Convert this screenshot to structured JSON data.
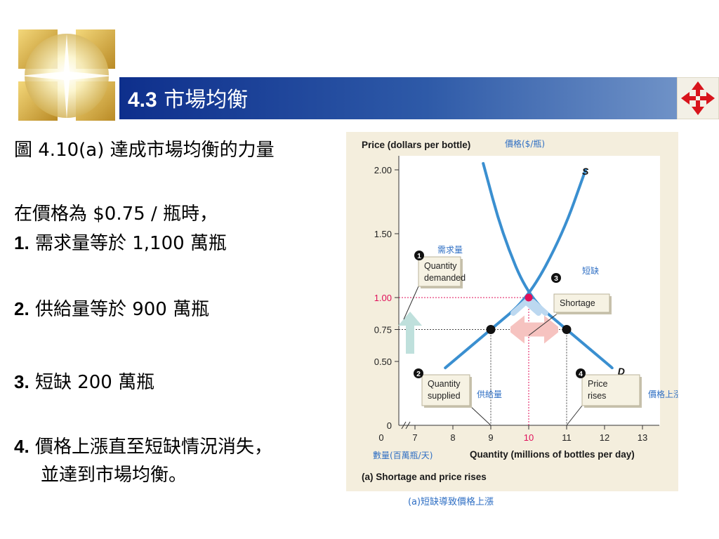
{
  "header": {
    "number": "4.3",
    "title": "市場均衡"
  },
  "nav_icon": "four-way-arrow-icon",
  "body_text": {
    "figure_title": "圖 4.10(a) 達成市場均衡的力量",
    "intro": "在價格為 $0.75 / 瓶時，",
    "items": [
      {
        "num": "1.",
        "text": "需求量等於 1,100 萬瓶"
      },
      {
        "num": "2.",
        "text": "供給量等於 900 萬瓶"
      },
      {
        "num": "3.",
        "text": "短缺 200 萬瓶"
      },
      {
        "num": "4.",
        "text": "價格上漲直至短缺情況消失，",
        "text2": "並達到市場均衡。"
      }
    ]
  },
  "chart_data": {
    "type": "line",
    "title": "(a) Shortage and price rises",
    "ylabel": "Price (dollars per bottle)",
    "ylabel_zh": "價格($/瓶)",
    "xlabel": "Quantity (millions of bottles per day)",
    "xlabel_zh": "數量(百萬瓶/天)",
    "caption_zh": "(a)短缺導致價格上漲",
    "xlim": [
      7,
      13
    ],
    "ylim": [
      0,
      2.0
    ],
    "x_ticks": [
      "0",
      "7",
      "8",
      "9",
      "10",
      "11",
      "12",
      "13"
    ],
    "y_ticks": [
      "0",
      "0.50",
      "0.75",
      "1.00",
      "1.50",
      "2.00"
    ],
    "y_tick_values": [
      0,
      0.5,
      0.75,
      1.0,
      1.5,
      2.0
    ],
    "x_tick_values": [
      7,
      8,
      9,
      10,
      11,
      12,
      13
    ],
    "highlight_tick_x": "10",
    "highlight_tick_y": "1.00",
    "series": [
      {
        "name": "S",
        "points": [
          [
            7.8,
            0.45
          ],
          [
            9,
            0.75
          ],
          [
            10,
            1.0
          ],
          [
            10.9,
            1.5
          ],
          [
            11.5,
            2.0
          ]
        ]
      },
      {
        "name": "D",
        "points": [
          [
            8.8,
            2.05
          ],
          [
            9.3,
            1.5
          ],
          [
            10,
            1.0
          ],
          [
            11,
            0.75
          ],
          [
            12.2,
            0.45
          ]
        ]
      }
    ],
    "points": [
      {
        "x": 9,
        "y": 0.75
      },
      {
        "x": 11,
        "y": 0.75
      },
      {
        "x": 10,
        "y": 1.0
      }
    ],
    "annotations": [
      {
        "marker": "4",
        "text": [
          "Price",
          "rises"
        ],
        "zh": "價格上漲"
      },
      {
        "marker": "3",
        "text": [
          "Shortage"
        ],
        "zh": "短缺"
      },
      {
        "marker": "2",
        "text": [
          "Quantity",
          "supplied"
        ],
        "zh": "供給量"
      },
      {
        "marker": "1",
        "text": [
          "Quantity",
          "demanded"
        ],
        "zh": "需求量"
      }
    ],
    "colors": {
      "curve": "#3a8fd0",
      "highlight": "#e0105a",
      "zh_label": "#2f6fc4",
      "panel": "#f4eedd",
      "plot": "#ffffff",
      "up_arrow": "#bfe0dc",
      "shortage_arrow": "#f6c3c0",
      "x_arrow": "#bcd8f0"
    }
  }
}
